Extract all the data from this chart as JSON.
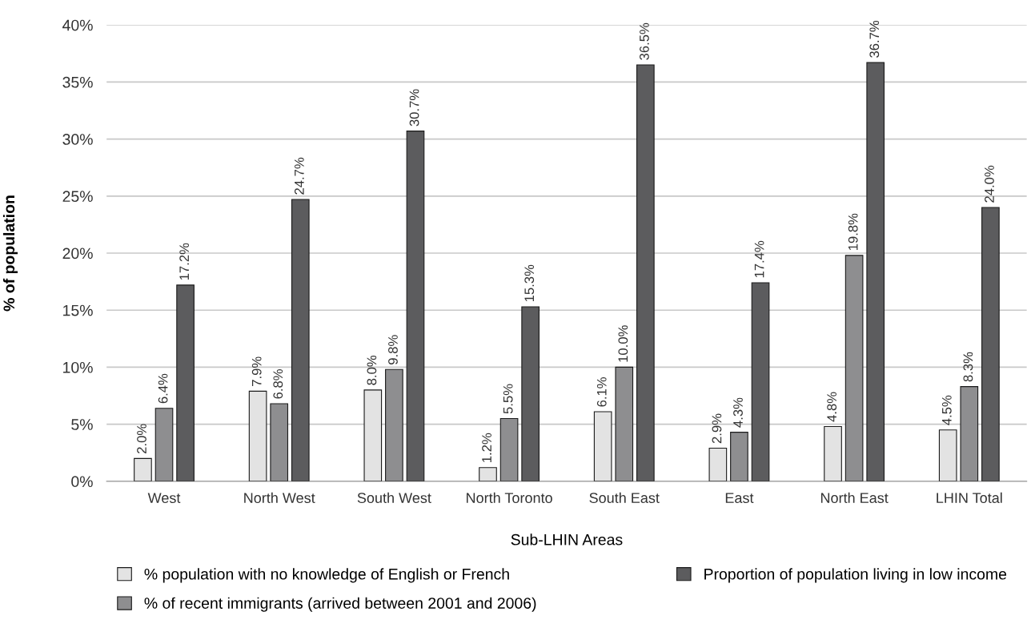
{
  "chart_data": {
    "type": "bar",
    "xlabel": "Sub-LHIN Areas",
    "ylabel": "% of population",
    "categories": [
      "West",
      "North West",
      "South West",
      "North Toronto",
      "South East",
      "East",
      "North East",
      "LHIN Total"
    ],
    "series": [
      {
        "name": "% population with no knowledge of English or French",
        "color": "#e3e3e3",
        "values": [
          2.0,
          7.9,
          8.0,
          1.2,
          6.1,
          2.9,
          4.8,
          4.5
        ],
        "value_labels": [
          "2.0%",
          "7.9%",
          "8.0%",
          "1.2%",
          "6.1%",
          "2.9%",
          "4.8%",
          "4.5%"
        ]
      },
      {
        "name": "% of recent immigrants (arrived between 2001 and 2006)",
        "color": "#8e8e90",
        "values": [
          6.4,
          6.8,
          9.8,
          5.5,
          10.0,
          4.3,
          19.8,
          8.3
        ],
        "value_labels": [
          "6.4%",
          "6.8%",
          "9.8%",
          "5.5%",
          "10.0%",
          "4.3%",
          "19.8%",
          "8.3%"
        ]
      },
      {
        "name": "Proportion of population living in low income",
        "color": "#5c5c5e",
        "values": [
          17.2,
          24.7,
          30.7,
          15.3,
          36.5,
          17.4,
          36.7,
          24.0
        ],
        "value_labels": [
          "17.2%",
          "24.7%",
          "30.7%",
          "15.3%",
          "36.5%",
          "17.4%",
          "36.7%",
          "24.0%"
        ]
      }
    ],
    "ylim": [
      0,
      40
    ],
    "yticks": [
      {
        "value": 0,
        "label": "0%"
      },
      {
        "value": 5,
        "label": "5%"
      },
      {
        "value": 10,
        "label": "10%"
      },
      {
        "value": 15,
        "label": "15%"
      },
      {
        "value": 20,
        "label": "20%"
      },
      {
        "value": 25,
        "label": "25%"
      },
      {
        "value": 30,
        "label": "30%"
      },
      {
        "value": 35,
        "label": "35%"
      },
      {
        "value": 40,
        "label": "40%"
      }
    ],
    "grid": "y",
    "legend": "bottom"
  }
}
